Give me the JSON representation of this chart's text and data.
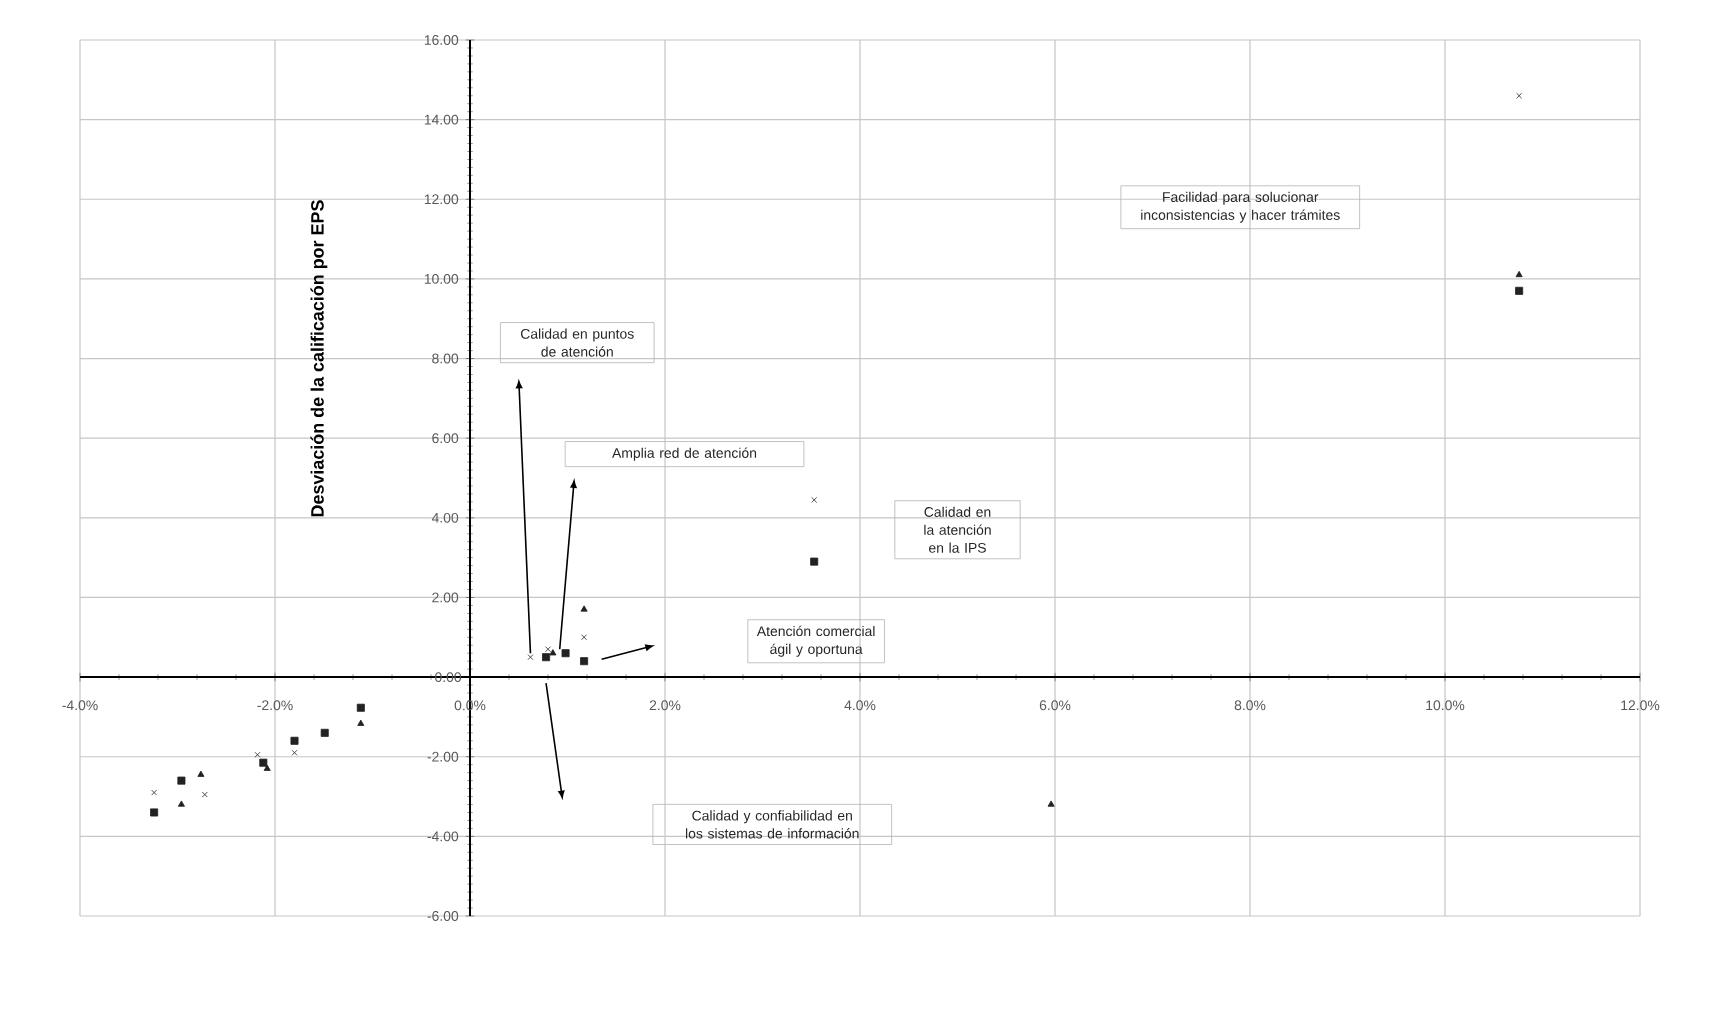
{
  "chart_data": {
    "type": "scatter",
    "ylabel": "Desviación de la calificación por EPS",
    "xlim": [
      -4,
      12
    ],
    "ylim": [
      -6,
      16
    ],
    "xticks": [
      {
        "value": -4,
        "label": "-4.0%"
      },
      {
        "value": -2,
        "label": "-2.0%"
      },
      {
        "value": 0,
        "label": "0.0%"
      },
      {
        "value": 2,
        "label": "2.0%"
      },
      {
        "value": 4,
        "label": "4.0%"
      },
      {
        "value": 6,
        "label": "6.0%"
      },
      {
        "value": 8,
        "label": "8.0%"
      },
      {
        "value": 10,
        "label": "10.0%"
      },
      {
        "value": 12,
        "label": "12.0%"
      }
    ],
    "yticks": [
      {
        "value": -6,
        "label": "-6.00"
      },
      {
        "value": -4,
        "label": "-4.00"
      },
      {
        "value": -2,
        "label": "-2.00"
      },
      {
        "value": 0,
        "label": "0.00"
      },
      {
        "value": 2,
        "label": "2.00"
      },
      {
        "value": 4,
        "label": "4.00"
      },
      {
        "value": 6,
        "label": "6.00"
      },
      {
        "value": 8,
        "label": "8.00"
      },
      {
        "value": 10,
        "label": "10.00"
      },
      {
        "value": 12,
        "label": "12.00"
      },
      {
        "value": 14,
        "label": "14.00"
      },
      {
        "value": 16,
        "label": "16.00"
      }
    ],
    "grid": true,
    "series": [
      {
        "color": "#222222",
        "marker": "cross",
        "x": [
          0.62,
          0.8,
          1.17,
          3.53,
          10.76,
          -3.24,
          -2.72,
          -2.18,
          -1.8
        ],
        "values": [
          0.5,
          0.7,
          1.0,
          4.45,
          14.6,
          -2.9,
          -2.95,
          -1.95,
          -1.9
        ]
      },
      {
        "color": "#222222",
        "marker": "square",
        "x": [
          0.78,
          0.98,
          1.17,
          3.53,
          10.76,
          -3.24,
          -2.96,
          -2.12,
          -1.8,
          -1.49,
          -1.12
        ],
        "values": [
          0.5,
          0.6,
          0.4,
          2.9,
          9.7,
          -3.4,
          -2.6,
          -2.15,
          -1.6,
          -1.4,
          -0.77
        ]
      },
      {
        "color": "#222222",
        "marker": "triangle",
        "x": [
          0.85,
          1.17,
          5.96,
          10.76,
          -2.96,
          -2.76,
          -2.08,
          -1.12
        ],
        "values": [
          0.6,
          1.7,
          -3.2,
          10.1,
          -3.2,
          -2.45,
          -2.3,
          -1.17
        ]
      }
    ],
    "annotations": [
      "Calidad en puntos de atención",
      "Amplia red de atención",
      "Calidad en la atención en la IPS",
      "Atención comercial ágil y oportuna",
      "Calidad y confiabilidad en los sistemas de información",
      "Facilidad para solucionar inconsistencias y hacer trámites"
    ]
  }
}
